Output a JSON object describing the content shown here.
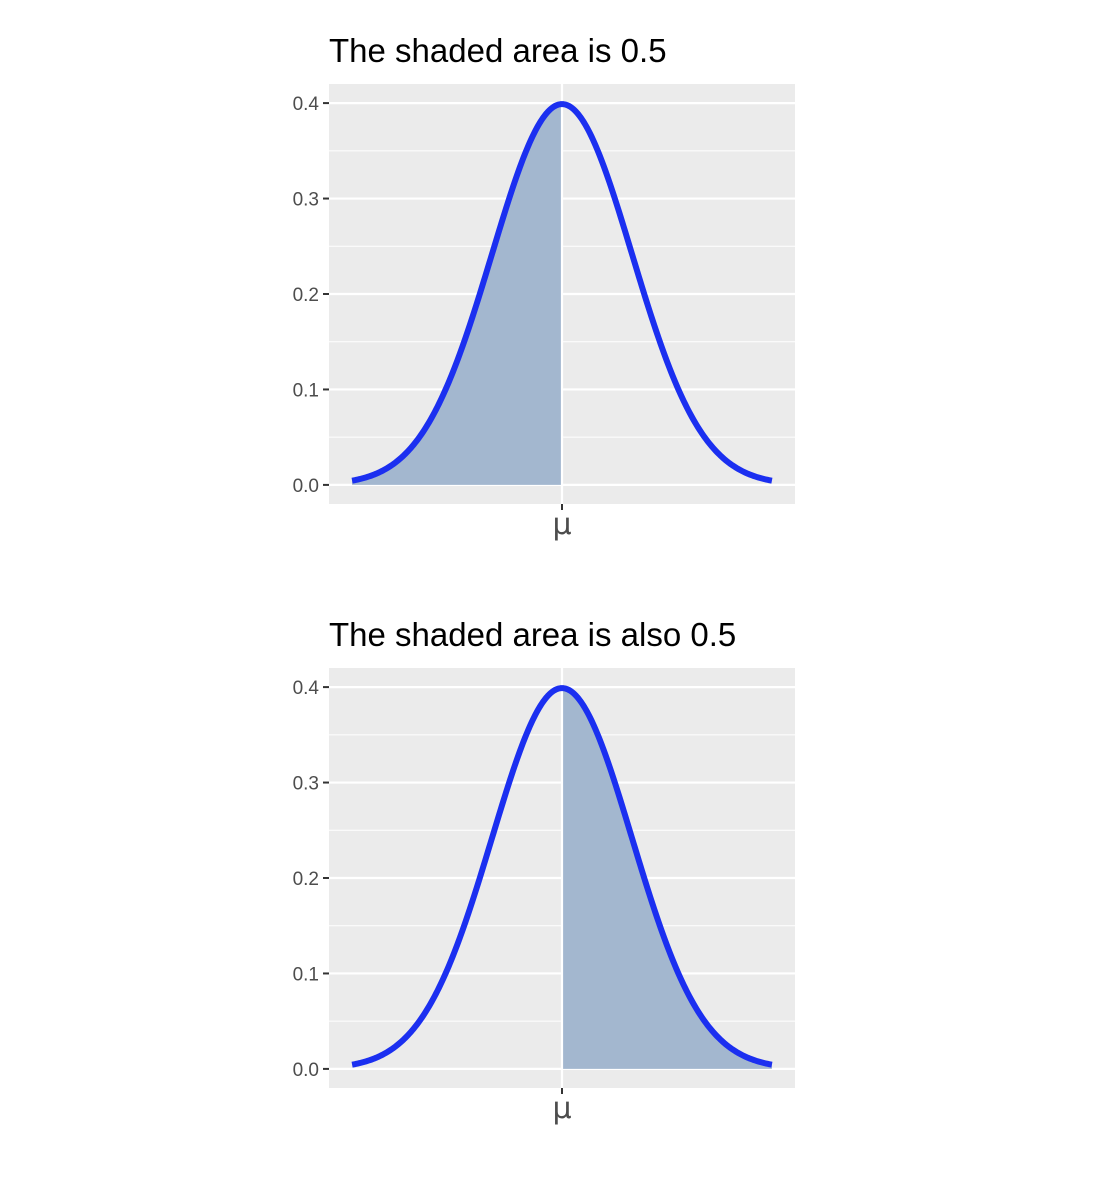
{
  "chart_data": [
    {
      "type": "area",
      "title": "The shaded area is 0.5",
      "xlabel": "",
      "ylabel": "",
      "x_tick_labels": [
        "μ"
      ],
      "y_ticks": [
        0.0,
        0.1,
        0.2,
        0.3,
        0.4
      ],
      "y_tick_labels": [
        "0.0",
        "0.1",
        "0.2",
        "0.3",
        "0.4"
      ],
      "xlim": [
        -3.33,
        3.33
      ],
      "ylim": [
        -0.02,
        0.42
      ],
      "curve": {
        "distribution": "standard normal density",
        "x_range": [
          -3,
          3
        ],
        "peak": {
          "x": 0,
          "y": 0.4
        }
      },
      "shaded_region": {
        "side": "left",
        "from": -3,
        "to": 0,
        "area": 0.5
      },
      "grid": true,
      "legend": "none"
    },
    {
      "type": "area",
      "title": "The shaded area is also 0.5",
      "xlabel": "",
      "ylabel": "",
      "x_tick_labels": [
        "μ"
      ],
      "y_ticks": [
        0.0,
        0.1,
        0.2,
        0.3,
        0.4
      ],
      "y_tick_labels": [
        "0.0",
        "0.1",
        "0.2",
        "0.3",
        "0.4"
      ],
      "xlim": [
        -3.33,
        3.33
      ],
      "ylim": [
        -0.02,
        0.42
      ],
      "curve": {
        "distribution": "standard normal density",
        "x_range": [
          -3,
          3
        ],
        "peak": {
          "x": 0,
          "y": 0.4
        }
      },
      "shaded_region": {
        "side": "right",
        "from": 0,
        "to": 3,
        "area": 0.5
      },
      "grid": true,
      "legend": "none"
    }
  ],
  "colors": {
    "curve": "#1b2ff0",
    "fill": "#a3b7cf",
    "panel_background": "#ebebeb",
    "grid": "#ffffff",
    "tick_text": "#4d4d4d",
    "tick_mark": "#333333",
    "title_text": "#000000"
  }
}
